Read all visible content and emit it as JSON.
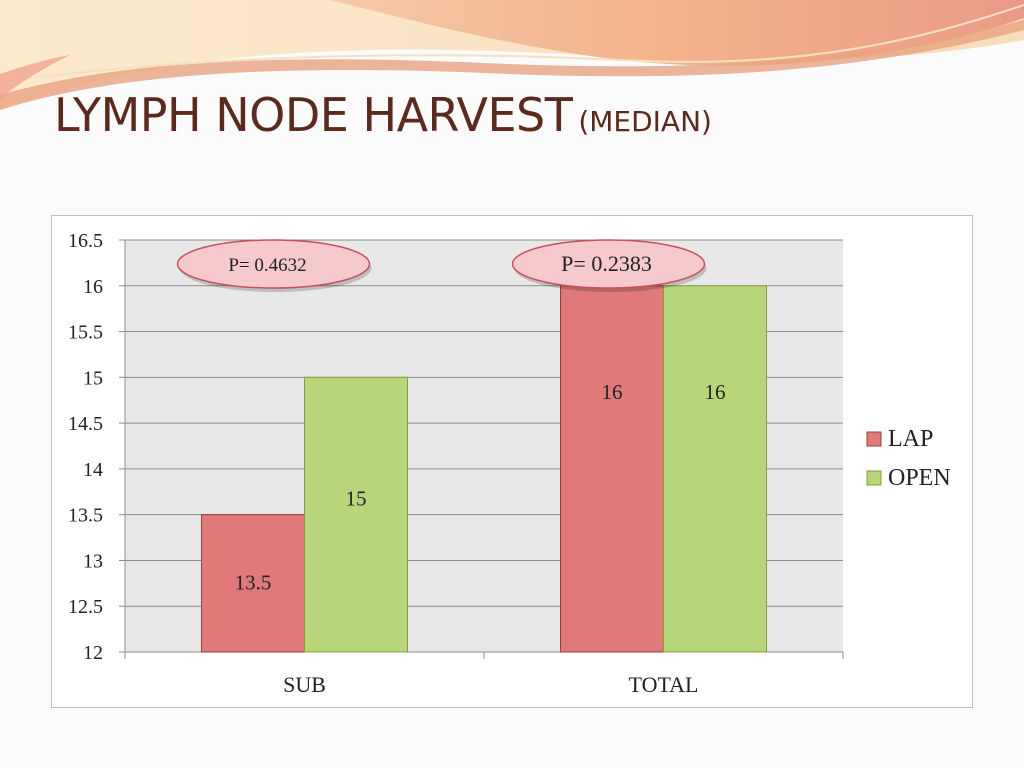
{
  "title": {
    "main": "LYMPH NODE HARVEST",
    "sub": "(MEDIAN)"
  },
  "colors": {
    "lap": "#e07a7a",
    "open": "#b7d67a",
    "plot_bg": "#e8e8e8",
    "title": "#5a2a1e",
    "callout_fill": "#f6c9cd",
    "callout_stroke": "#c7505a"
  },
  "chart_data": {
    "type": "bar",
    "categories": [
      "SUB",
      "TOTAL"
    ],
    "series": [
      {
        "name": "LAP",
        "values": [
          13.5,
          16
        ]
      },
      {
        "name": "OPEN",
        "values": [
          15,
          16
        ]
      }
    ],
    "data_labels": [
      [
        "13.5",
        "16"
      ],
      [
        "15",
        "16"
      ]
    ],
    "ylim": [
      12,
      16.5
    ],
    "y_ticks": [
      "12",
      "12.5",
      "13",
      "13.5",
      "14",
      "14.5",
      "15",
      "15.5",
      "16",
      "16.5"
    ],
    "grid": true,
    "legend": "right",
    "annotations": [
      "P=  0.4632",
      "P= 0.2383"
    ]
  }
}
